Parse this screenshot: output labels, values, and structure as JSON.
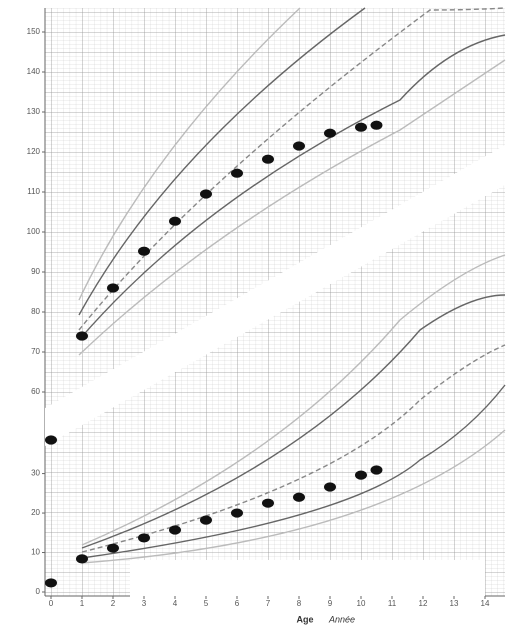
{
  "chart_data": [
    {
      "type": "scatter",
      "name": "height",
      "x": [
        0,
        1,
        2,
        3,
        4,
        5,
        6,
        7,
        8,
        9,
        10,
        10.5
      ],
      "values": [
        48,
        74,
        86,
        95.2,
        102.7,
        109.5,
        114.7,
        118.2,
        121.5,
        124.7,
        126.2,
        126.7
      ],
      "color": "#111111",
      "xlim": [
        0,
        14
      ],
      "ylim": [
        45,
        156
      ],
      "yticks": [
        60,
        70,
        80,
        90,
        100,
        110,
        120,
        130,
        140,
        150
      ]
    },
    {
      "type": "scatter",
      "name": "weight",
      "x": [
        0,
        1,
        2,
        3,
        4,
        5,
        6,
        7,
        8,
        9,
        10,
        10.5
      ],
      "values": [
        2.3,
        8.4,
        11.1,
        13.7,
        15.7,
        18.2,
        20,
        22.5,
        24,
        26.6,
        29.6,
        30.9
      ],
      "color": "#111111",
      "xlim": [
        0,
        14
      ],
      "ylim": [
        0,
        38
      ],
      "yticks": [
        0,
        10,
        20,
        30
      ],
      "xticks": [
        0,
        1,
        2,
        3,
        4,
        5,
        6,
        7,
        8,
        9,
        10,
        11,
        12,
        13,
        14
      ],
      "x_label": "Age",
      "x_label_alt": "Année"
    }
  ]
}
